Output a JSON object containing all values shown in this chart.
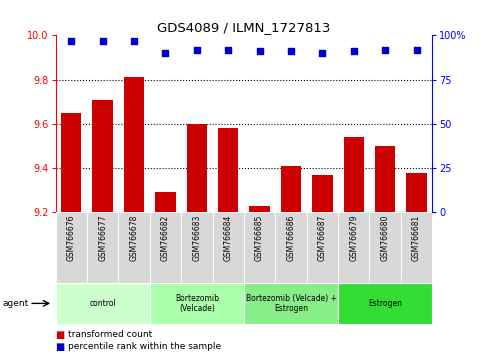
{
  "title": "GDS4089 / ILMN_1727813",
  "samples": [
    "GSM766676",
    "GSM766677",
    "GSM766678",
    "GSM766682",
    "GSM766683",
    "GSM766684",
    "GSM766685",
    "GSM766686",
    "GSM766687",
    "GSM766679",
    "GSM766680",
    "GSM766681"
  ],
  "bar_values": [
    9.65,
    9.71,
    9.81,
    9.29,
    9.6,
    9.58,
    9.23,
    9.41,
    9.37,
    9.54,
    9.5,
    9.38
  ],
  "bar_color": "#cc0000",
  "dot_values": [
    97,
    97,
    97,
    90,
    92,
    92,
    91,
    91,
    90,
    91,
    92,
    92
  ],
  "dot_color": "#0000cc",
  "ylim_left": [
    9.2,
    10.0
  ],
  "ylim_right": [
    0,
    100
  ],
  "yticks_left": [
    9.2,
    9.4,
    9.6,
    9.8,
    10.0
  ],
  "yticks_right": [
    0,
    25,
    50,
    75,
    100
  ],
  "ytick_labels_right": [
    "0",
    "25",
    "50",
    "75",
    "100%"
  ],
  "groups": [
    {
      "label": "control",
      "start": 0,
      "end": 3,
      "color": "#ccffcc"
    },
    {
      "label": "Bortezomib\n(Velcade)",
      "start": 3,
      "end": 6,
      "color": "#aaffaa"
    },
    {
      "label": "Bortezomib (Velcade) +\nEstrogen",
      "start": 6,
      "end": 9,
      "color": "#88ee88"
    },
    {
      "label": "Estrogen",
      "start": 9,
      "end": 12,
      "color": "#33dd33"
    }
  ],
  "legend_bar_label": "transformed count",
  "legend_dot_label": "percentile rank within the sample",
  "agent_label": "agent",
  "background_color": "#ffffff",
  "bar_baseline": 9.2,
  "sample_box_color": "#d8d8d8",
  "grid_lines": [
    9.4,
    9.6,
    9.8
  ]
}
